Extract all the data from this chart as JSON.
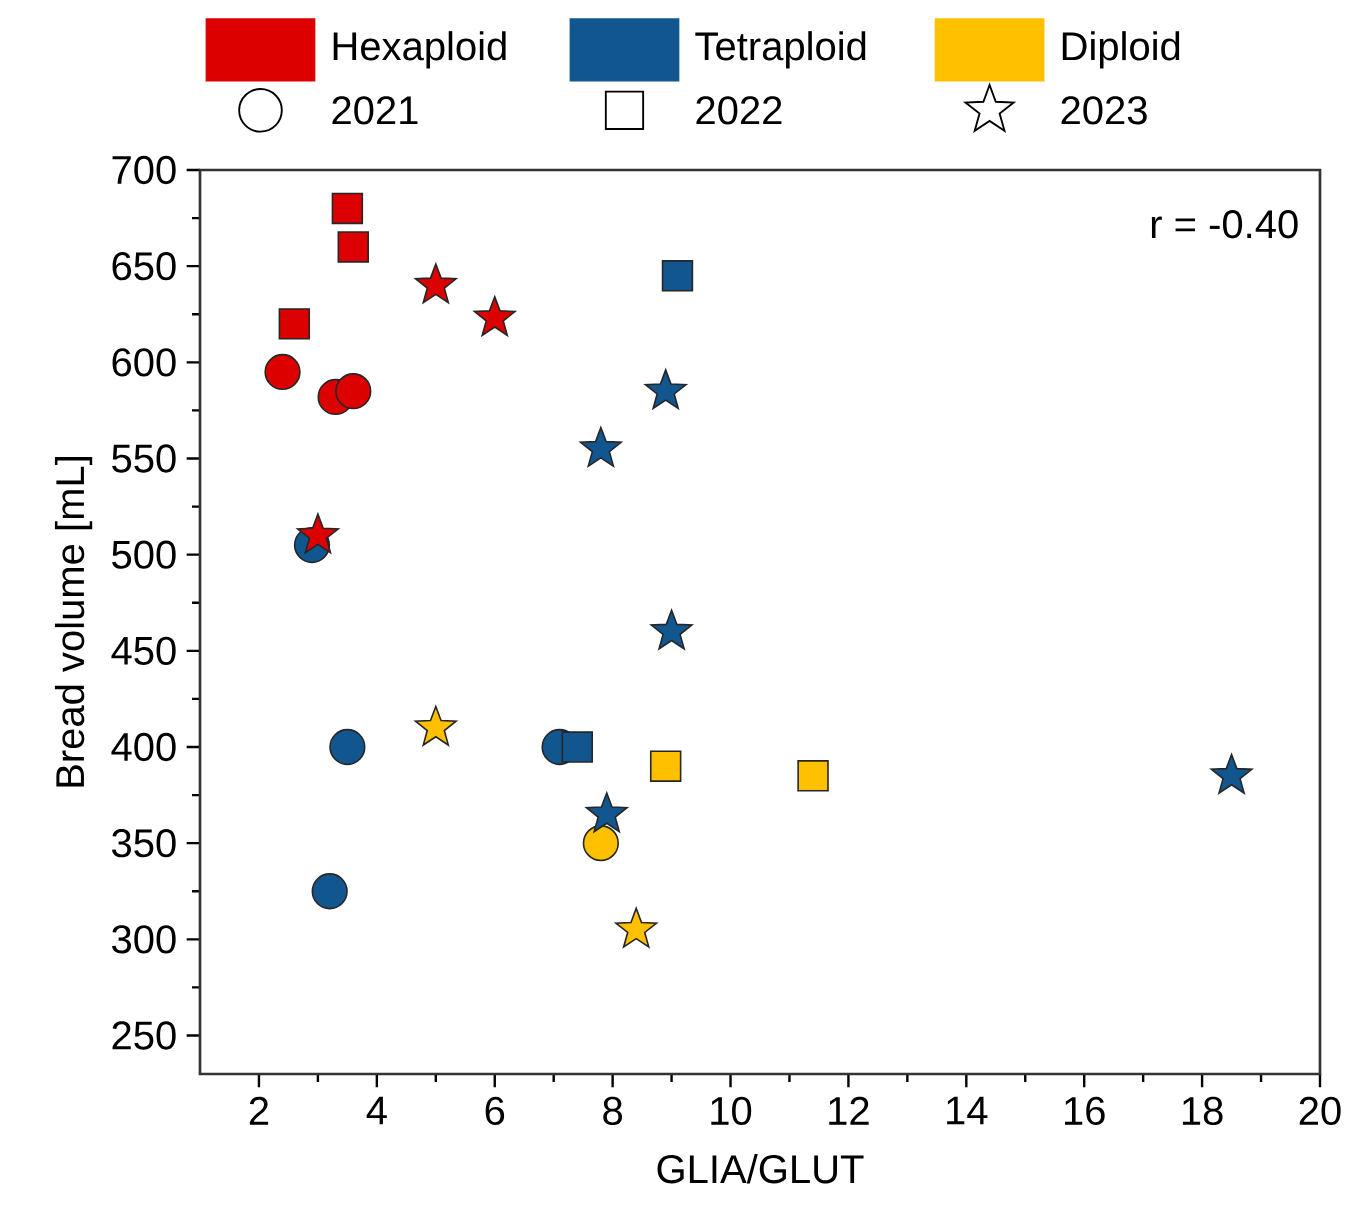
{
  "chart_data": {
    "type": "scatter",
    "xlabel": "GLIA/GLUT",
    "ylabel": "Bread volume [mL]",
    "xlim": [
      1,
      20
    ],
    "ylim": [
      230,
      700
    ],
    "xticks": [
      2,
      4,
      6,
      8,
      10,
      12,
      14,
      16,
      18,
      20
    ],
    "yticks": [
      250,
      300,
      350,
      400,
      450,
      500,
      550,
      600,
      650,
      700
    ],
    "legend": "top",
    "grid": false,
    "annotations": [
      {
        "text": "r = -0.40"
      }
    ],
    "series": [
      {
        "name": "Hexaploid",
        "color": "#dd0000",
        "x": [
          2.4,
          3.3,
          3.6,
          3.5,
          3.6,
          2.6,
          5,
          6,
          3
        ],
        "values": [
          595,
          582,
          585,
          680,
          660,
          620,
          640,
          623,
          510
        ],
        "marker": [
          "circle",
          "circle",
          "circle",
          "square",
          "square",
          "square",
          "star",
          "star",
          "star"
        ]
      },
      {
        "name": "Tetraploid",
        "color": "#125690",
        "x": [
          2.9,
          3.5,
          3.2,
          7.1,
          9.1,
          7.4,
          8.9,
          7.8,
          9,
          7.9,
          18.5
        ],
        "values": [
          505,
          400,
          325,
          400,
          645,
          400,
          585,
          555,
          460,
          365,
          385
        ],
        "marker": [
          "circle",
          "circle",
          "circle",
          "circle",
          "square",
          "square",
          "star",
          "star",
          "star",
          "star",
          "star"
        ]
      },
      {
        "name": "Diploid",
        "color": "#ffc000",
        "x": [
          7.8,
          8.9,
          11.4,
          5,
          8.4
        ],
        "values": [
          350,
          390,
          385,
          410,
          305
        ],
        "marker": [
          "circle",
          "square",
          "square",
          "star",
          "star"
        ]
      },
      {
        "name": "2021",
        "marker": "circle"
      },
      {
        "name": "2022",
        "marker": "square"
      },
      {
        "name": "2023",
        "marker": "star"
      }
    ]
  }
}
